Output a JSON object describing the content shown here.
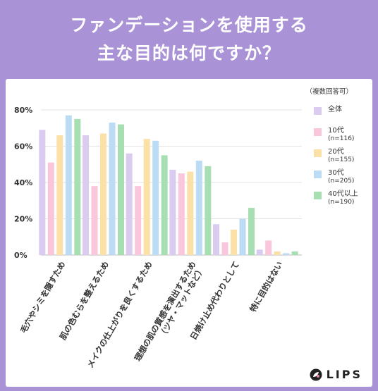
{
  "title": {
    "line1": "ファンデーションを使用する",
    "line2": "主な目的は何ですか？"
  },
  "note": "（複数回答可）",
  "brand": "LIPS",
  "colors": {
    "frame": "#a993d6",
    "series": [
      "#d9ccf0",
      "#f9c6dc",
      "#fbe0a8",
      "#bcdbf5",
      "#a8dfb2"
    ]
  },
  "chart_data": {
    "type": "bar",
    "ylim": [
      0,
      80
    ],
    "yticks": [
      "0%",
      "20%",
      "40%",
      "60%",
      "80%"
    ],
    "categories": [
      "毛穴やシミを隠すため",
      "肌の色むらを整えるため",
      "メイクの仕上がりを良くするため",
      "理想の肌の質感を演出するため（ツヤ・マットなど）",
      "日焼け止め代わりとして",
      "特に目的はない"
    ],
    "category_lines": [
      [
        "毛穴やシミを隠すため"
      ],
      [
        "肌の色むらを整えるため"
      ],
      [
        "メイクの仕上がりを良くするため"
      ],
      [
        "理想の肌の質感を演出するため",
        "（ツヤ・マットなど）"
      ],
      [
        "日焼け止め代わりとして"
      ],
      [
        "特に目的はない"
      ]
    ],
    "series": [
      {
        "name": "全体",
        "sub": "",
        "values": [
          69,
          66,
          56,
          47,
          17,
          3
        ]
      },
      {
        "name": "10代",
        "sub": "(n=116)",
        "values": [
          51,
          38,
          38,
          45,
          7,
          8
        ]
      },
      {
        "name": "20代",
        "sub": "(n=155)",
        "values": [
          66,
          67,
          64,
          46,
          14,
          2
        ]
      },
      {
        "name": "30代",
        "sub": "(n=205)",
        "values": [
          77,
          73,
          63,
          52,
          20,
          1
        ]
      },
      {
        "name": "40代以上",
        "sub": "(n=190)",
        "values": [
          75,
          72,
          55,
          49,
          26,
          2
        ]
      }
    ],
    "grid": true,
    "legend_position": "right"
  }
}
